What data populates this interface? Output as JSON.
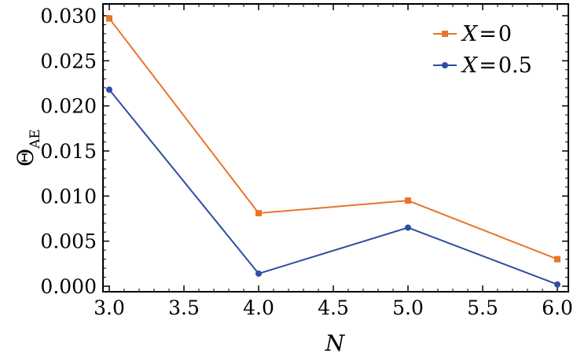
{
  "chart_data": {
    "type": "line",
    "title": "",
    "xlabel": "N",
    "ylabel": {
      "main": "Θ",
      "subscript": "AE"
    },
    "xlim": [
      3.0,
      6.0
    ],
    "ylim": [
      0.0,
      0.031
    ],
    "xticks": [
      3.0,
      3.5,
      4.0,
      4.5,
      5.0,
      5.5,
      6.0
    ],
    "xtick_labels": [
      "3.0",
      "3.5",
      "4.0",
      "4.5",
      "5.0",
      "5.5",
      "6.0"
    ],
    "yticks": [
      0.0,
      0.005,
      0.01,
      0.015,
      0.02,
      0.025,
      0.03
    ],
    "ytick_labels": [
      "0.000",
      "0.005",
      "0.010",
      "0.015",
      "0.020",
      "0.025",
      "0.030"
    ],
    "grid": false,
    "legend_position": "top-right",
    "series": [
      {
        "name": "X = 0",
        "legend": {
          "var": "X",
          "eq": "=",
          "val": "0"
        },
        "color": "#e8742a",
        "marker": "square",
        "x": [
          3.0,
          4.0,
          5.0,
          6.0
        ],
        "values": [
          0.0297,
          0.0081,
          0.0095,
          0.003
        ]
      },
      {
        "name": "X = 0.5",
        "legend": {
          "var": "X",
          "eq": "=",
          "val": "0.5"
        },
        "color": "#2e4ea3",
        "marker": "circle",
        "x": [
          3.0,
          4.0,
          5.0,
          6.0
        ],
        "values": [
          0.0218,
          0.0014,
          0.0065,
          0.0002
        ]
      }
    ]
  }
}
